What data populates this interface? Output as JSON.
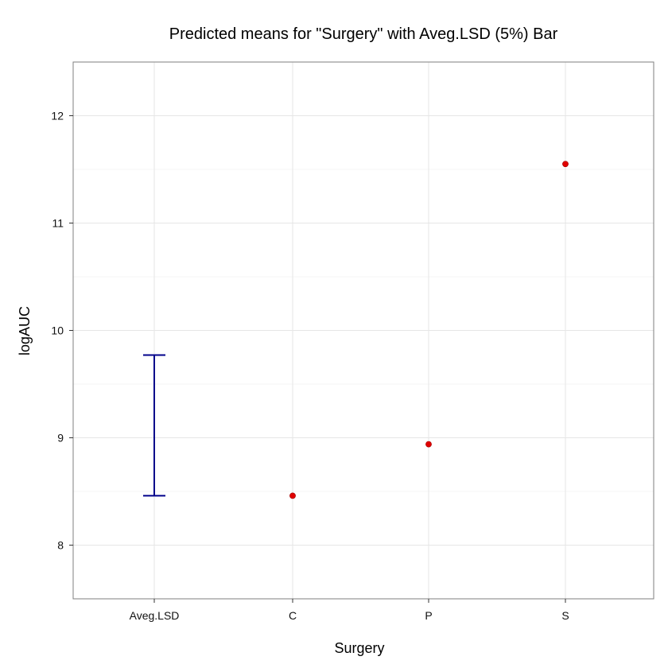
{
  "chart_data": {
    "type": "scatter",
    "title": "Predicted means for \"Surgery\" with Aveg.LSD (5%) Bar",
    "xlabel": "Surgery",
    "ylabel": "logAUC",
    "categories": [
      "Aveg.LSD",
      "C",
      "P",
      "S"
    ],
    "yticks": [
      8,
      9,
      10,
      11,
      12
    ],
    "ylim": [
      7.5,
      12.5
    ],
    "grid": true,
    "series": [
      {
        "type": "scatter",
        "points": [
          {
            "category": "C",
            "value": 8.46
          },
          {
            "category": "P",
            "value": 8.94
          },
          {
            "category": "S",
            "value": 11.55
          }
        ]
      },
      {
        "type": "errorbar",
        "category": "Aveg.LSD",
        "low": 8.46,
        "high": 9.77
      }
    ],
    "colors": {
      "points": "#e00000",
      "lsd_bar": "#00008b",
      "grid": "#e6e6e6",
      "panel_border": "#7f7f7f"
    }
  }
}
